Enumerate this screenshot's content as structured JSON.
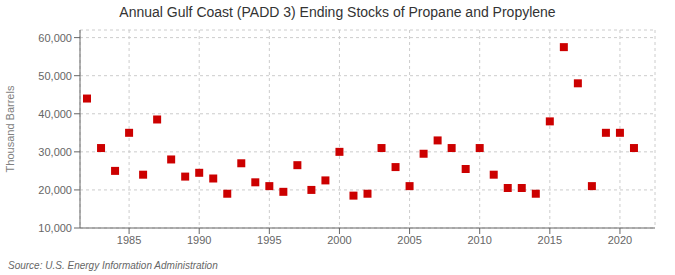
{
  "chart_data": {
    "type": "scatter",
    "title": "Annual Gulf Coast (PADD 3) Ending Stocks of Propane and Propylene",
    "ylabel": "Thousand Barrels",
    "annotations": [
      "Source: U.S. Energy Information Administration"
    ],
    "x": [
      1982,
      1983,
      1984,
      1985,
      1986,
      1987,
      1988,
      1989,
      1990,
      1991,
      1992,
      1993,
      1994,
      1995,
      1996,
      1997,
      1998,
      1999,
      2000,
      2001,
      2002,
      2003,
      2004,
      2005,
      2006,
      2007,
      2008,
      2009,
      2010,
      2011,
      2012,
      2013,
      2014,
      2015,
      2016,
      2017,
      2018,
      2019,
      2020,
      2021
    ],
    "values": [
      44000,
      31000,
      25000,
      35000,
      24000,
      38500,
      28000,
      23500,
      24500,
      23000,
      19000,
      27000,
      22000,
      21000,
      19500,
      26500,
      20000,
      22500,
      30000,
      18500,
      19000,
      31000,
      26000,
      21000,
      29500,
      33000,
      31000,
      25500,
      31000,
      24000,
      20500,
      20500,
      19000,
      38000,
      57500,
      48000,
      21000,
      35000,
      35000,
      31000
    ],
    "color": "#cc0000",
    "marker": "square",
    "xlim": [
      1981.5,
      2022.5
    ],
    "xticks": [
      1985,
      1990,
      1995,
      2000,
      2005,
      2010,
      2015,
      2020
    ],
    "ylim": [
      10000,
      62000
    ],
    "yticks": [
      {
        "value": 10000,
        "label": "10,000"
      },
      {
        "value": 20000,
        "label": "20,000"
      },
      {
        "value": 30000,
        "label": "30,000"
      },
      {
        "value": 40000,
        "label": "40,000"
      },
      {
        "value": 50000,
        "label": "50,000"
      },
      {
        "value": 60000,
        "label": "60,000"
      }
    ],
    "grid": true
  }
}
